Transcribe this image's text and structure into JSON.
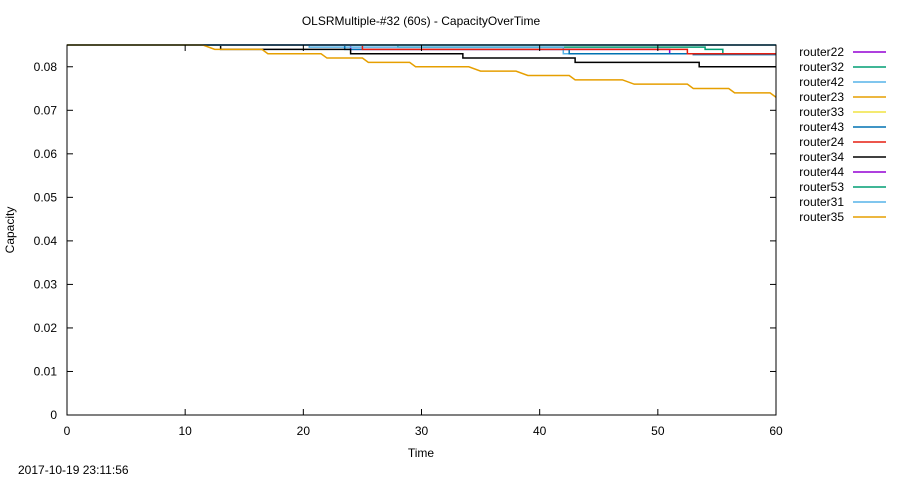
{
  "footer": {
    "timestamp": "2017-10-19 23:11:56"
  },
  "chart_data": {
    "type": "line",
    "title": "OLSRMultiple-#32 (60s) - CapacityOverTime",
    "xlabel": "Time",
    "ylabel": "Capacity",
    "xlim": [
      0,
      60
    ],
    "ylim": [
      0,
      0.085
    ],
    "x_ticks": [
      0,
      10,
      20,
      30,
      40,
      50,
      60
    ],
    "y_ticks": [
      0,
      0.01,
      0.02,
      0.03,
      0.04,
      0.05,
      0.06,
      0.07,
      0.08
    ],
    "y_tick_labels": [
      "0",
      "0.01",
      "0.02",
      "0.03",
      "0.04",
      "0.05",
      "0.06",
      "0.07",
      "0.08"
    ],
    "grid": false,
    "legend_position": "outside-right",
    "series": [
      {
        "name": "router22",
        "color": "#9400d3",
        "points": [
          [
            0,
            0.085
          ],
          [
            24,
            0.085
          ],
          [
            24,
            0.084
          ],
          [
            51,
            0.084
          ],
          [
            51,
            0.083
          ],
          [
            60,
            0.083
          ]
        ]
      },
      {
        "name": "router32",
        "color": "#009e73",
        "points": [
          [
            0,
            0.085
          ],
          [
            28,
            0.085
          ],
          [
            28,
            0.0845
          ],
          [
            54,
            0.0845
          ],
          [
            54,
            0.084
          ],
          [
            55.5,
            0.084
          ],
          [
            55.5,
            0.083
          ],
          [
            60,
            0.083
          ]
        ]
      },
      {
        "name": "router42",
        "color": "#56b4e9",
        "points": [
          [
            0,
            0.085
          ],
          [
            20.5,
            0.085
          ],
          [
            20.5,
            0.0845
          ],
          [
            42,
            0.0845
          ],
          [
            42,
            0.083
          ],
          [
            60,
            0.083
          ]
        ]
      },
      {
        "name": "router23",
        "color": "#e69f00",
        "points": [
          [
            0,
            0.085
          ],
          [
            60,
            0.085
          ]
        ]
      },
      {
        "name": "router33",
        "color": "#f0e442",
        "points": [
          [
            0,
            0.085
          ],
          [
            60,
            0.085
          ]
        ]
      },
      {
        "name": "router43",
        "color": "#0072b2",
        "points": [
          [
            0,
            0.085
          ],
          [
            23.5,
            0.085
          ],
          [
            23.5,
            0.084
          ],
          [
            42.5,
            0.084
          ],
          [
            42.5,
            0.083
          ],
          [
            53,
            0.083
          ],
          [
            53,
            0.0828
          ],
          [
            60,
            0.0828
          ]
        ]
      },
      {
        "name": "router24",
        "color": "#e51e10",
        "points": [
          [
            0,
            0.085
          ],
          [
            25,
            0.085
          ],
          [
            25,
            0.084
          ],
          [
            52.5,
            0.084
          ],
          [
            52.5,
            0.083
          ],
          [
            60,
            0.083
          ]
        ]
      },
      {
        "name": "router34",
        "color": "#000000",
        "points": [
          [
            0,
            0.085
          ],
          [
            13,
            0.085
          ],
          [
            13,
            0.084
          ],
          [
            24,
            0.084
          ],
          [
            24,
            0.083
          ],
          [
            33.5,
            0.083
          ],
          [
            33.5,
            0.082
          ],
          [
            43,
            0.082
          ],
          [
            43,
            0.081
          ],
          [
            53.5,
            0.081
          ],
          [
            53.5,
            0.08
          ],
          [
            60,
            0.08
          ]
        ]
      },
      {
        "name": "router44",
        "color": "#9400d3",
        "points": [
          [
            0,
            0.085
          ],
          [
            60,
            0.085
          ]
        ]
      },
      {
        "name": "router53",
        "color": "#009e73",
        "points": [
          [
            0,
            0.085
          ],
          [
            60,
            0.085
          ]
        ]
      },
      {
        "name": "router31",
        "color": "#56b4e9",
        "points": [
          [
            0,
            0.085
          ],
          [
            60,
            0.085
          ]
        ]
      },
      {
        "name": "router35",
        "color": "#e69f00",
        "points": [
          [
            0,
            0.085
          ],
          [
            11.5,
            0.085
          ],
          [
            12.5,
            0.084
          ],
          [
            16.5,
            0.084
          ],
          [
            17,
            0.083
          ],
          [
            21.5,
            0.083
          ],
          [
            22,
            0.082
          ],
          [
            25,
            0.082
          ],
          [
            25.5,
            0.081
          ],
          [
            29,
            0.081
          ],
          [
            29.5,
            0.08
          ],
          [
            34,
            0.08
          ],
          [
            35,
            0.079
          ],
          [
            38,
            0.079
          ],
          [
            39,
            0.078
          ],
          [
            42.5,
            0.078
          ],
          [
            43,
            0.077
          ],
          [
            47,
            0.077
          ],
          [
            48,
            0.076
          ],
          [
            52.5,
            0.076
          ],
          [
            53,
            0.075
          ],
          [
            56,
            0.075
          ],
          [
            56.5,
            0.074
          ],
          [
            59.5,
            0.074
          ],
          [
            60,
            0.073
          ]
        ]
      }
    ]
  }
}
